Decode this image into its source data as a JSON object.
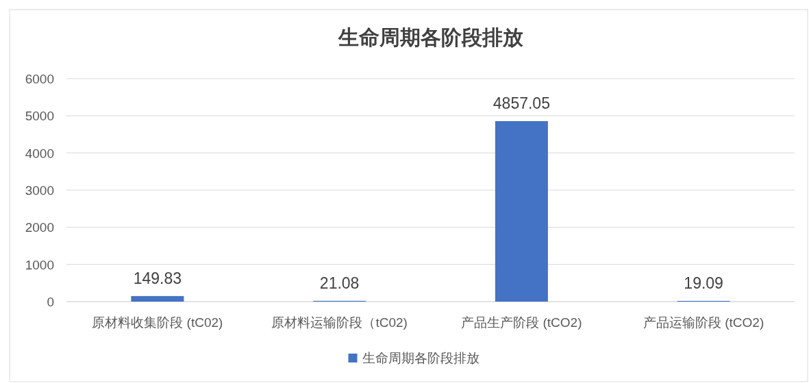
{
  "chart_data": {
    "type": "bar",
    "title": "生命周期各阶段排放",
    "categories": [
      "原材料收集阶段 (tC02)",
      "原材料运输阶段（tC02)",
      "产品生产阶段 (tCO2)",
      "产品运输阶段 (tCO2)"
    ],
    "series": [
      {
        "name": "生命周期各阶段排放",
        "color": "#4472c4",
        "values": [
          149.83,
          21.08,
          4857.05,
          19.09
        ]
      }
    ],
    "ylim": [
      0,
      6000
    ],
    "yticks": [
      0,
      1000,
      2000,
      3000,
      4000,
      5000,
      6000
    ],
    "grid": "y",
    "legend": "bottom",
    "data_labels": true
  }
}
